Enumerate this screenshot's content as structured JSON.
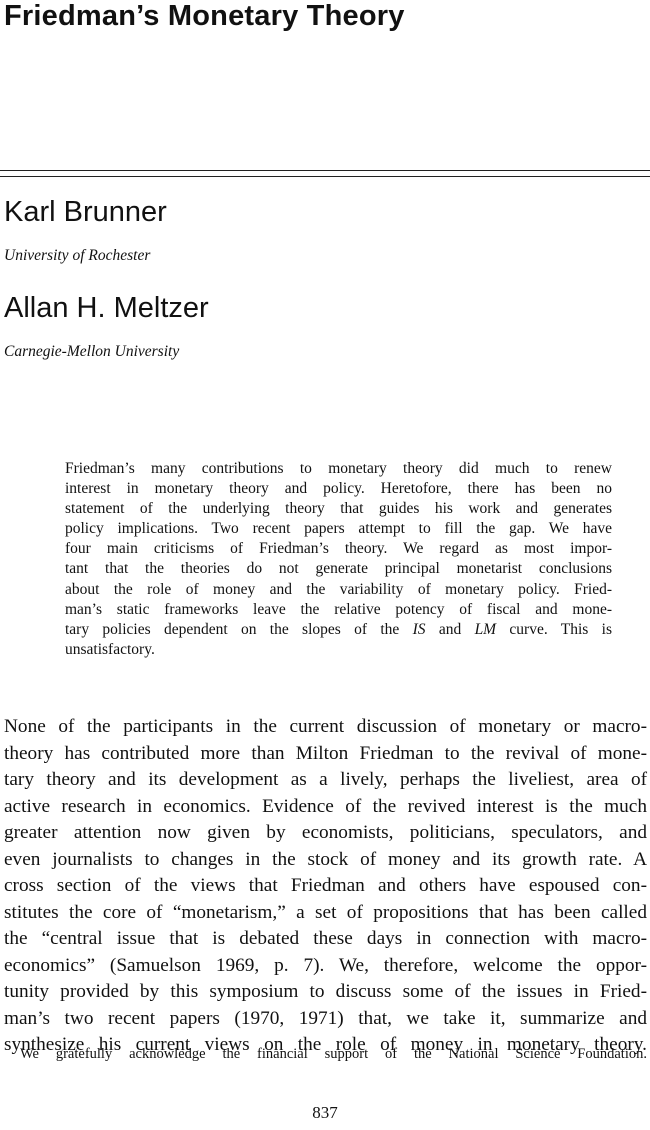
{
  "title": "Friedman’s Monetary Theory",
  "authors": [
    {
      "name": "Karl Brunner",
      "affiliation": "University of Rochester"
    },
    {
      "name": "Allan H. Meltzer",
      "affiliation": "Carnegie-Mellon University"
    }
  ],
  "abstract_lines": [
    "Friedman’s many contributions to monetary theory did much to renew",
    "interest in monetary theory and policy. Heretofore, there has been no",
    "statement of the underlying theory that guides his work and generates",
    "policy implications. Two recent papers attempt to fill the gap. We have",
    "four main criticisms of Friedman’s theory. We regard as most impor-",
    "tant that the theories do not generate principal monetarist conclusions",
    "about the role of money and the variability of monetary policy. Fried-",
    "man’s static frameworks leave the relative potency of fiscal and mone-"
  ],
  "abstract_line9": {
    "before": "tary policies dependent on the slopes of the ",
    "is": "IS",
    "and": " and ",
    "lm": "LM",
    "after": " curve. This is"
  },
  "abstract_line10": "unsatisfactory.",
  "body_lines": [
    "None of the participants in the current discussion of monetary or macro-",
    "theory has contributed more than Milton Friedman to the revival of mone-",
    "tary theory and its development as a lively, perhaps the liveliest, area of",
    "active research in economics. Evidence of the revived interest is the much",
    "greater attention now given by economists, politicians, speculators, and",
    "even journalists to changes in the stock of money and its growth rate. A",
    "cross section of the views that Friedman and others have espoused con-",
    "stitutes the core of “monetarism,” a set of propositions that has been called",
    "the “central issue that is debated these days in connection with macro-",
    "economics” (Samuelson 1969, p. 7). We, therefore, welcome the oppor-",
    "tunity provided by this symposium to discuss some of the issues in Fried-",
    "man’s two recent papers (1970, 1971) that, we take it, summarize and",
    "synthesize his current views on the role of money in monetary theory."
  ],
  "footnote": "We gratefully acknowledge the financial support of the National Science Foundation.",
  "page_number": "837"
}
